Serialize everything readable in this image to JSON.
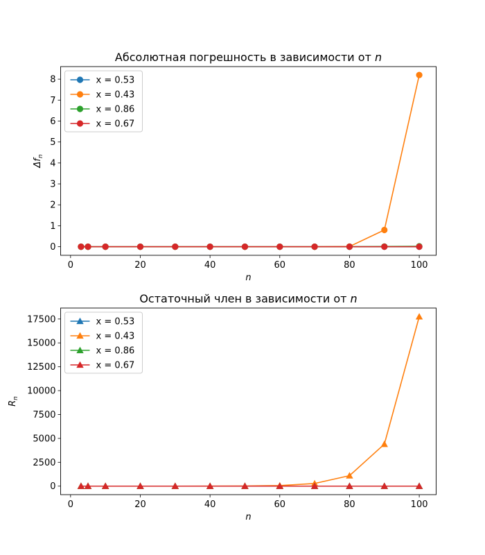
{
  "chart_data": [
    {
      "type": "line",
      "title": "Абсолютная погрешность в зависимости от n",
      "title_prefix": "Абсолютная погрешность в зависимости от ",
      "title_var": "n",
      "xlabel": "n",
      "ylabel": "Δf_n",
      "ylabel_main": "Δf",
      "ylabel_sub": "n",
      "marker": "circle",
      "xlim": [
        -2.85,
        104.85
      ],
      "ylim": [
        -0.41,
        8.6
      ],
      "xticks": [
        0,
        20,
        40,
        60,
        80,
        100
      ],
      "yticks": [
        0,
        1,
        2,
        3,
        4,
        5,
        6,
        7,
        8
      ],
      "legend_position": "top-left",
      "x": [
        3,
        5,
        10,
        20,
        30,
        40,
        50,
        60,
        70,
        80,
        90,
        100
      ],
      "series": [
        {
          "name": "x = 0.53",
          "color": "#1f77b4",
          "values": [
            0,
            0,
            0,
            0,
            0,
            0,
            0,
            0,
            0,
            0,
            0,
            0
          ]
        },
        {
          "name": "x = 0.43",
          "color": "#ff7f0e",
          "values": [
            0,
            0,
            0,
            0,
            0,
            0,
            0,
            0,
            0,
            0.01,
            0.8,
            8.2
          ]
        },
        {
          "name": "x = 0.86",
          "color": "#2ca02c",
          "values": [
            0,
            0,
            0,
            0,
            0,
            0,
            0,
            0,
            0,
            0,
            0.01,
            0.02
          ]
        },
        {
          "name": "x = 0.67",
          "color": "#d62728",
          "values": [
            0,
            0,
            0,
            0,
            0,
            0,
            0,
            0,
            0,
            0,
            0,
            0
          ]
        }
      ]
    },
    {
      "type": "line",
      "title": "Остаточный член в зависимости от n",
      "title_prefix": "Остаточный член в зависимости от ",
      "title_var": "n",
      "xlabel": "n",
      "ylabel": "R_n",
      "ylabel_main": "R",
      "ylabel_sub": "n",
      "marker": "triangle",
      "xlim": [
        -2.85,
        104.85
      ],
      "ylim": [
        -890,
        18650
      ],
      "xticks": [
        0,
        20,
        40,
        60,
        80,
        100
      ],
      "yticks": [
        0,
        2500,
        5000,
        7500,
        10000,
        12500,
        15000,
        17500
      ],
      "legend_position": "top-left",
      "x": [
        3,
        5,
        10,
        20,
        30,
        40,
        50,
        60,
        70,
        80,
        90,
        100
      ],
      "series": [
        {
          "name": "x = 0.53",
          "color": "#1f77b4",
          "values": [
            0,
            0,
            0,
            0,
            0,
            0,
            0,
            0,
            0,
            0,
            0,
            0
          ]
        },
        {
          "name": "x = 0.43",
          "color": "#ff7f0e",
          "values": [
            0,
            0,
            0,
            0,
            0,
            5,
            15,
            60,
            280,
            1100,
            4400,
            17750
          ]
        },
        {
          "name": "x = 0.86",
          "color": "#2ca02c",
          "values": [
            0,
            0,
            0,
            0,
            0,
            0,
            0,
            0,
            0,
            0,
            0,
            0
          ]
        },
        {
          "name": "x = 0.67",
          "color": "#d62728",
          "values": [
            0,
            0,
            0,
            0,
            0,
            0,
            0,
            0,
            0,
            0,
            0,
            0
          ]
        }
      ]
    }
  ]
}
